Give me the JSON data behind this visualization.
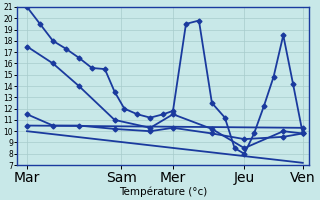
{
  "xlabel": "Température (°c)",
  "bg_color": "#c8e8e8",
  "line_color": "#1a3a9e",
  "grid_color": "#a8cccc",
  "ylim": [
    7,
    21
  ],
  "yticks": [
    7,
    8,
    9,
    10,
    11,
    12,
    13,
    14,
    15,
    16,
    17,
    18,
    19,
    20,
    21
  ],
  "xlim": [
    0,
    9.0
  ],
  "xtick_positions": [
    0.3,
    3.2,
    4.8,
    7.0,
    8.8
  ],
  "xtick_labels": [
    "Mar",
    "Sam",
    "Mer",
    "Jeu",
    "Ven"
  ],
  "series": [
    {
      "x": [
        0.3,
        0.7,
        1.1,
        1.5,
        1.9,
        2.3,
        2.7,
        3.0,
        3.3,
        3.7,
        4.1,
        4.5,
        4.8,
        5.2,
        5.6,
        6.0,
        6.4,
        6.7,
        7.0,
        7.3,
        7.6,
        7.9,
        8.2,
        8.5,
        8.8
      ],
      "y": [
        21.0,
        19.5,
        18.0,
        17.3,
        16.5,
        15.6,
        15.5,
        13.5,
        12.0,
        11.5,
        11.2,
        11.5,
        11.8,
        19.5,
        19.8,
        12.5,
        11.2,
        8.5,
        8.0,
        9.8,
        12.2,
        14.8,
        18.5,
        14.2,
        9.8
      ],
      "marker": "D",
      "ms": 2.5,
      "lw": 1.3
    },
    {
      "x": [
        0.3,
        1.1,
        1.9,
        3.0,
        4.1,
        4.8,
        6.0,
        7.0,
        8.2,
        8.8
      ],
      "y": [
        17.5,
        16.0,
        14.0,
        11.0,
        10.3,
        11.5,
        10.2,
        8.5,
        10.0,
        9.8
      ],
      "marker": "D",
      "ms": 2.5,
      "lw": 1.3
    },
    {
      "x": [
        0.3,
        1.1,
        1.9,
        3.0,
        4.1,
        4.8,
        6.0,
        7.0,
        8.2,
        8.8
      ],
      "y": [
        11.5,
        10.5,
        10.5,
        10.2,
        10.0,
        10.3,
        9.8,
        9.3,
        9.5,
        9.8
      ],
      "marker": "D",
      "ms": 2.5,
      "lw": 1.3
    },
    {
      "x": [
        0.3,
        8.8
      ],
      "y": [
        10.5,
        10.3
      ],
      "marker": "D",
      "ms": 2.5,
      "lw": 1.3
    },
    {
      "x": [
        0.3,
        8.8
      ],
      "y": [
        10.0,
        7.2
      ],
      "marker": null,
      "ms": 0,
      "lw": 1.3
    }
  ]
}
